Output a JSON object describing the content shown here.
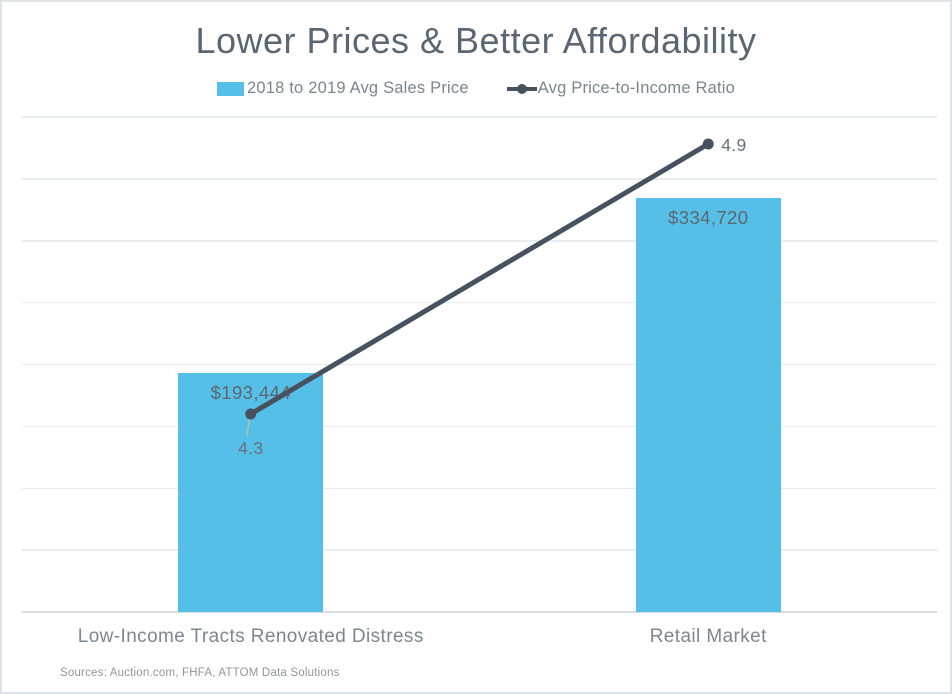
{
  "chart_data": {
    "type": "bar+line",
    "title": "Lower Prices & Better Affordability",
    "categories": [
      "Low-Income Tracts Renovated Distress",
      "Retail Market"
    ],
    "series": [
      {
        "name": "2018 to 2019 Avg Sales Price",
        "type": "bar",
        "values": [
          193444,
          334720
        ],
        "labels": [
          "$193,444",
          "$334,720"
        ],
        "color": "#55bfe8"
      },
      {
        "name": "Avg Price-to-Income Ratio",
        "type": "line",
        "values": [
          4.3,
          4.9
        ],
        "labels": [
          "4.3",
          "4.9"
        ],
        "color": "#47525e"
      }
    ],
    "primary_axis": {
      "min": 0,
      "max": 400000,
      "grid_step": 50000,
      "tick_labels_visible": false
    },
    "secondary_axis": {
      "tick_labels_visible": false
    },
    "grid": true,
    "legend_position": "top",
    "source": "Sources: Auction.com, FHFA, ATTOM Data Solutions"
  }
}
